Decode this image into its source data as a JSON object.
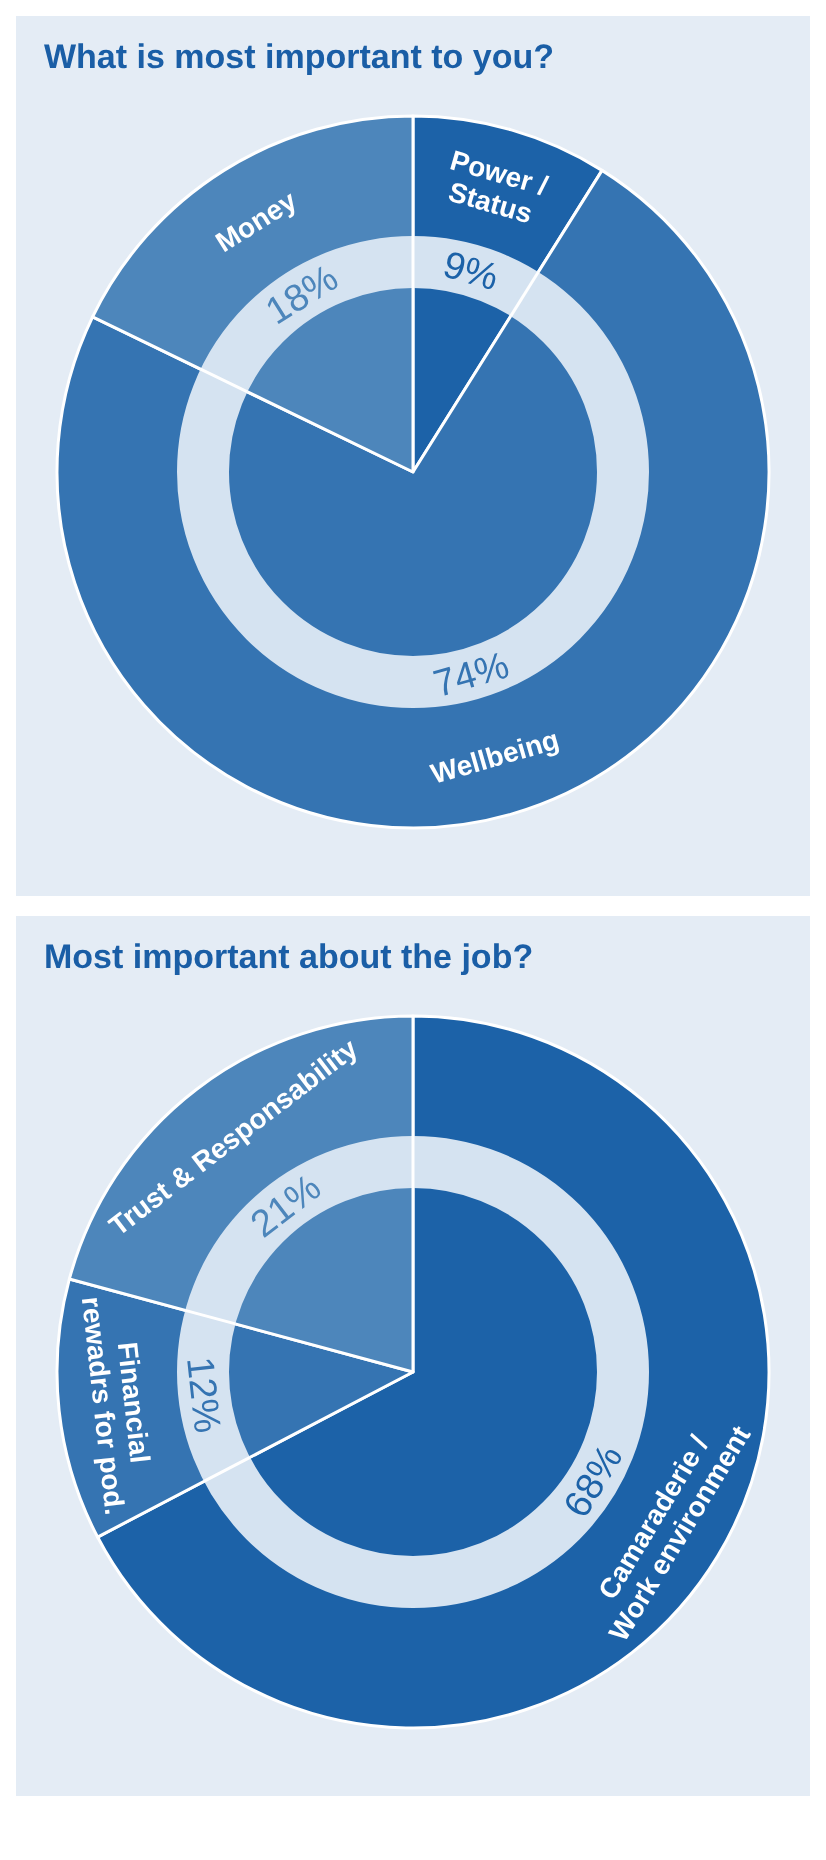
{
  "chart_data": [
    {
      "type": "pie",
      "title": "What is most important to you?",
      "categories": [
        "Power / Status",
        "Wellbeing",
        "Money"
      ],
      "values": [
        9,
        74,
        18
      ],
      "value_labels": [
        "9%",
        "74%",
        "18%"
      ],
      "colors": [
        "#1c62a8",
        "#3574b2",
        "#4d86bb"
      ]
    },
    {
      "type": "pie",
      "title": "Most important about the job?",
      "categories": [
        "Camaraderie / Work environment",
        "Financial rewadrs for pod.",
        "Trust & Responsability"
      ],
      "values": [
        68,
        12,
        21
      ],
      "value_labels": [
        "68%",
        "12%",
        "21%"
      ],
      "colors": [
        "#1c62a8",
        "#3574b2",
        "#4d86bb"
      ]
    }
  ]
}
